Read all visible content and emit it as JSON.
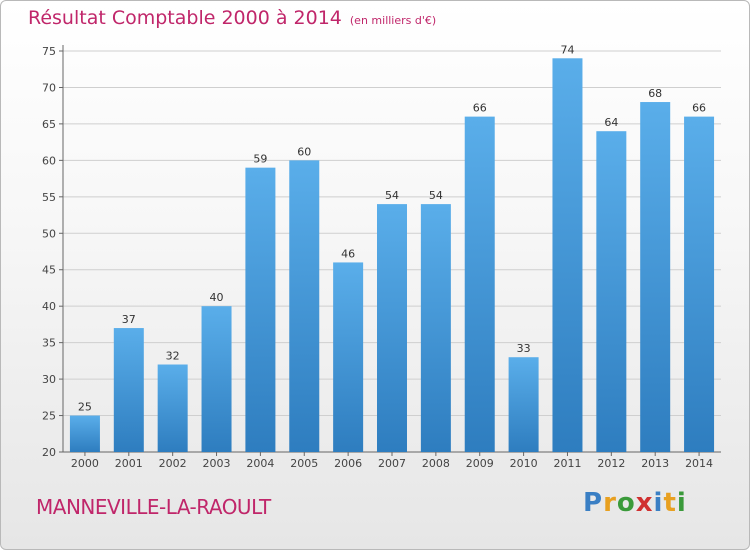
{
  "header": {
    "title": "Résultat Comptable 2000 à 2014",
    "subtitle": "(en milliers d'€)"
  },
  "commune": "MANNEVILLE-LA-RAOULT",
  "logo": {
    "text": "Proxiti",
    "letters": [
      {
        "ch": "P",
        "color": "#3a7fc4"
      },
      {
        "ch": "r",
        "color": "#e8a020"
      },
      {
        "ch": "o",
        "color": "#3a9a3a"
      },
      {
        "ch": "x",
        "color": "#d03030"
      },
      {
        "ch": "i",
        "color": "#3a7fc4"
      },
      {
        "ch": "t",
        "color": "#e8a020"
      },
      {
        "ch": "i",
        "color": "#3a9a3a"
      }
    ]
  },
  "colors": {
    "bar_top": "#5aaeea",
    "bar_bottom": "#2e7dbf",
    "title": "#c0266a",
    "grid": "#cfcfcf"
  },
  "chart_data": {
    "type": "bar",
    "title": "Résultat Comptable 2000 à 2014",
    "subtitle": "(en milliers d'€)",
    "xlabel": "",
    "ylabel": "",
    "categories": [
      "2000",
      "2001",
      "2002",
      "2003",
      "2004",
      "2005",
      "2006",
      "2007",
      "2008",
      "2009",
      "2010",
      "2011",
      "2012",
      "2013",
      "2014"
    ],
    "values": [
      25,
      37,
      32,
      40,
      59,
      60,
      46,
      54,
      54,
      66,
      33,
      74,
      64,
      68,
      66
    ],
    "ylim": [
      20,
      75
    ],
    "yticks": [
      20,
      25,
      30,
      35,
      40,
      45,
      50,
      55,
      60,
      65,
      70,
      75
    ],
    "grid": true,
    "legend": "none"
  }
}
